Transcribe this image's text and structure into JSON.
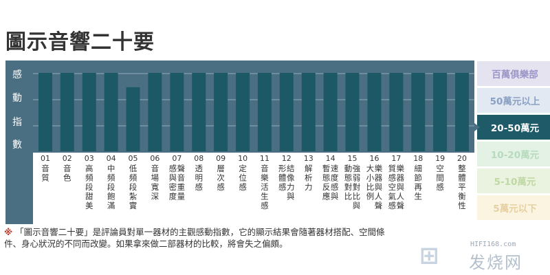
{
  "title": "圖示音響二十要",
  "chart_data": {
    "type": "bar",
    "ylabel": "感動指數",
    "categories": [
      {
        "num": "01",
        "label": "音質"
      },
      {
        "num": "02",
        "label": "音色"
      },
      {
        "num": "03",
        "label": "高頻段甜美"
      },
      {
        "num": "04",
        "label": "中頻段飽滿"
      },
      {
        "num": "05",
        "label": "低頻段紮實"
      },
      {
        "num": "06",
        "label": "音場寬深"
      },
      {
        "num": "07",
        "label": "聲音重量感與密度"
      },
      {
        "num": "08",
        "label": "透明感"
      },
      {
        "num": "09",
        "label": "層次感"
      },
      {
        "num": "10",
        "label": "定位感"
      },
      {
        "num": "11",
        "label": "音樂活生感"
      },
      {
        "num": "12",
        "label": "結像力與形體感"
      },
      {
        "num": "13",
        "label": "解析力"
      },
      {
        "num": "14",
        "label": "速度感與暫態反應"
      },
      {
        "num": "15",
        "label": "強弱對比與動態對比"
      },
      {
        "num": "16",
        "label": "樂器與人聲大小比例"
      },
      {
        "num": "17",
        "label": "樂器與人聲質感空氣感"
      },
      {
        "num": "18",
        "label": "細節再生"
      },
      {
        "num": "19",
        "label": "空間感"
      },
      {
        "num": "20",
        "label": "整體平衡性"
      }
    ],
    "tiers": [
      "百萬俱樂部",
      "50萬元以上",
      "20-50萬元",
      "10-20萬元",
      "5-10萬元",
      "5萬元以下"
    ],
    "values": [
      6,
      6,
      6,
      6,
      4.9,
      6,
      6,
      6,
      6,
      6,
      6,
      6,
      6,
      6,
      6,
      6,
      6,
      6,
      6,
      6
    ],
    "ylim": [
      0,
      6
    ],
    "selected_tier": "20-50萬元"
  },
  "colors": {
    "panel": "#4a6f82",
    "panel_grid": "#93aebe",
    "bar": "#1d5866",
    "label_area": "#ffffff",
    "label_text": "#333333",
    "tier_bg": [
      "#e6e3f1",
      "#e3e9f3",
      "#1e5a68",
      "#e3f2e5",
      "#eaf3df",
      "#faf4e0"
    ],
    "tier_text": [
      "#9b96c7",
      "#8aa0c3",
      "#ffffff",
      "#b6dbbd",
      "#bfd8a4",
      "#e6cfa0"
    ]
  },
  "note": {
    "mark": "※",
    "text": "「圖示音響二十要」是評論員對單一器材的主觀感動指數，它的顯示結果會隨著器材搭配、空間條件、身心狀況的不同而改變。如果拿來做二部器材的比較，將會失之偏頗。"
  },
  "watermark": {
    "url": "HIFI168.com",
    "name": "发烧网"
  }
}
